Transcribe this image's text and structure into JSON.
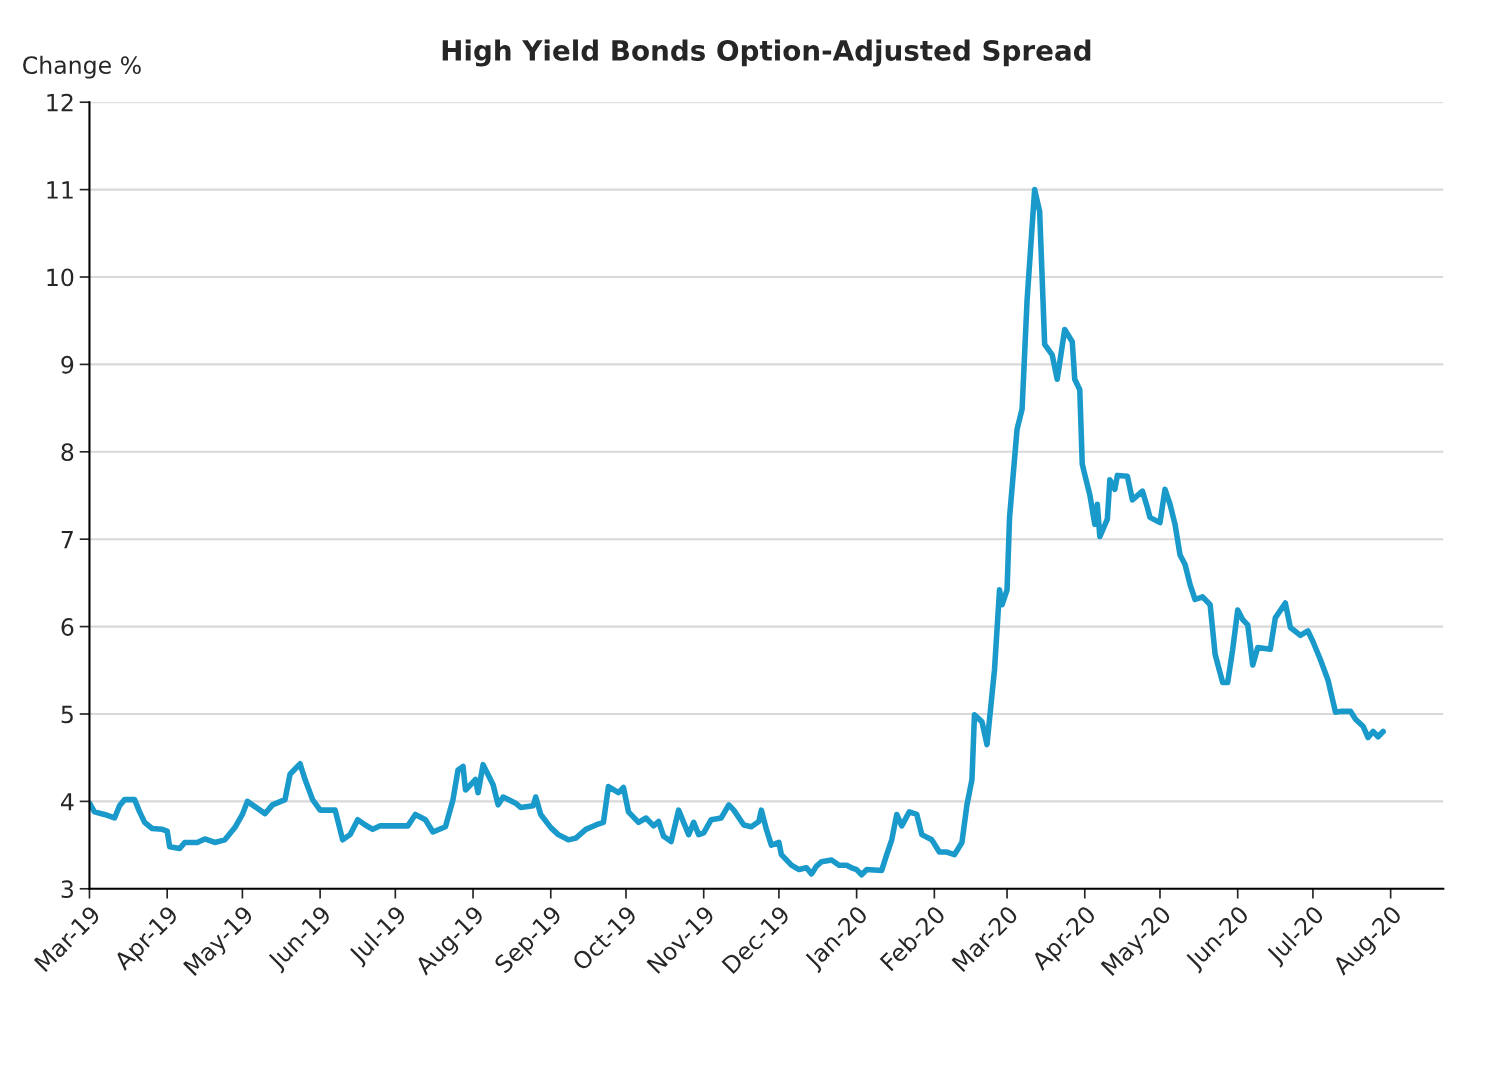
{
  "chart_data": {
    "type": "line",
    "title": "High Yield Bonds Option-Adjusted Spread",
    "ylabel": "Change %",
    "x": [
      "2019-03-01",
      "2019-03-03",
      "2019-03-07",
      "2019-03-11",
      "2019-03-13",
      "2019-03-15",
      "2019-03-19",
      "2019-03-21",
      "2019-03-23",
      "2019-03-26",
      "2019-03-30",
      "2019-04-01",
      "2019-04-02",
      "2019-04-06",
      "2019-04-08",
      "2019-04-13",
      "2019-04-16",
      "2019-04-20",
      "2019-04-24",
      "2019-04-28",
      "2019-05-01",
      "2019-05-03",
      "2019-05-06",
      "2019-05-10",
      "2019-05-13",
      "2019-05-18",
      "2019-05-20",
      "2019-05-24",
      "2019-05-26",
      "2019-05-29",
      "2019-06-01",
      "2019-06-07",
      "2019-06-10",
      "2019-06-13",
      "2019-06-16",
      "2019-06-19",
      "2019-06-22",
      "2019-06-25",
      "2019-07-01",
      "2019-07-06",
      "2019-07-09",
      "2019-07-13",
      "2019-07-16",
      "2019-07-21",
      "2019-07-24",
      "2019-07-26",
      "2019-07-28",
      "2019-07-29",
      "2019-08-02",
      "2019-08-03",
      "2019-08-05",
      "2019-08-09",
      "2019-08-11",
      "2019-08-13",
      "2019-08-18",
      "2019-08-20",
      "2019-08-25",
      "2019-08-26",
      "2019-08-28",
      "2019-09-01",
      "2019-09-04",
      "2019-09-08",
      "2019-09-11",
      "2019-09-15",
      "2019-09-19",
      "2019-09-22",
      "2019-09-24",
      "2019-09-28",
      "2019-09-30",
      "2019-10-02",
      "2019-10-06",
      "2019-10-09",
      "2019-10-12",
      "2019-10-14",
      "2019-10-16",
      "2019-10-19",
      "2019-10-22",
      "2019-10-26",
      "2019-10-28",
      "2019-10-30",
      "2019-11-01",
      "2019-11-04",
      "2019-11-08",
      "2019-11-11",
      "2019-11-13",
      "2019-11-17",
      "2019-11-20",
      "2019-11-23",
      "2019-11-24",
      "2019-11-26",
      "2019-11-28",
      "2019-12-01",
      "2019-12-02",
      "2019-12-06",
      "2019-12-09",
      "2019-12-12",
      "2019-12-14",
      "2019-12-16",
      "2019-12-18",
      "2019-12-22",
      "2019-12-25",
      "2019-12-28",
      "2019-12-30",
      "2020-01-01",
      "2020-01-03",
      "2020-01-05",
      "2020-01-11",
      "2020-01-13",
      "2020-01-15",
      "2020-01-17",
      "2020-01-19",
      "2020-01-22",
      "2020-01-25",
      "2020-01-27",
      "2020-01-31",
      "2020-02-03",
      "2020-02-06",
      "2020-02-09",
      "2020-02-12",
      "2020-02-14",
      "2020-02-16",
      "2020-02-17",
      "2020-02-20",
      "2020-02-22",
      "2020-02-25",
      "2020-02-27",
      "2020-02-28",
      "2020-03-01",
      "2020-03-02",
      "2020-03-05",
      "2020-03-07",
      "2020-03-09",
      "2020-03-12",
      "2020-03-14",
      "2020-03-16",
      "2020-03-19",
      "2020-03-21",
      "2020-03-24",
      "2020-03-27",
      "2020-03-28",
      "2020-03-30",
      "2020-03-31",
      "2020-04-01",
      "2020-04-03",
      "2020-04-05",
      "2020-04-06",
      "2020-04-07",
      "2020-04-10",
      "2020-04-11",
      "2020-04-13",
      "2020-04-14",
      "2020-04-18",
      "2020-04-20",
      "2020-04-24",
      "2020-04-26",
      "2020-04-27",
      "2020-05-01",
      "2020-05-03",
      "2020-05-05",
      "2020-05-07",
      "2020-05-09",
      "2020-05-11",
      "2020-05-13",
      "2020-05-15",
      "2020-05-18",
      "2020-05-21",
      "2020-05-23",
      "2020-05-26",
      "2020-05-28",
      "2020-05-30",
      "2020-06-01",
      "2020-06-03",
      "2020-06-05",
      "2020-06-07",
      "2020-06-09",
      "2020-06-14",
      "2020-06-16",
      "2020-06-20",
      "2020-06-22",
      "2020-06-26",
      "2020-06-29",
      "2020-07-01",
      "2020-07-04",
      "2020-07-07",
      "2020-07-10",
      "2020-07-12",
      "2020-07-16",
      "2020-07-18",
      "2020-07-21",
      "2020-07-23",
      "2020-07-25",
      "2020-07-27",
      "2020-07-29"
    ],
    "series": [
      {
        "color": "#1a9acb",
        "values": [
          3.98,
          3.88,
          3.85,
          3.81,
          3.95,
          4.02,
          4.02,
          3.88,
          3.76,
          3.69,
          3.68,
          3.66,
          3.48,
          3.46,
          3.53,
          3.53,
          3.57,
          3.53,
          3.56,
          3.7,
          3.85,
          4.0,
          3.94,
          3.86,
          3.96,
          4.02,
          4.31,
          4.43,
          4.25,
          4.02,
          3.9,
          3.9,
          3.56,
          3.62,
          3.79,
          3.73,
          3.68,
          3.72,
          3.72,
          3.72,
          3.85,
          3.79,
          3.65,
          3.71,
          4.02,
          4.36,
          4.4,
          4.13,
          4.25,
          4.1,
          4.42,
          4.19,
          3.96,
          4.05,
          3.98,
          3.93,
          3.95,
          4.05,
          3.85,
          3.7,
          3.62,
          3.56,
          3.58,
          3.68,
          3.73,
          3.76,
          4.17,
          4.1,
          4.16,
          3.88,
          3.76,
          3.81,
          3.72,
          3.77,
          3.6,
          3.54,
          3.9,
          3.62,
          3.76,
          3.62,
          3.64,
          3.79,
          3.81,
          3.96,
          3.9,
          3.73,
          3.71,
          3.77,
          3.9,
          3.68,
          3.5,
          3.53,
          3.39,
          3.27,
          3.22,
          3.24,
          3.17,
          3.26,
          3.31,
          3.33,
          3.27,
          3.27,
          3.24,
          3.22,
          3.16,
          3.22,
          3.21,
          3.39,
          3.56,
          3.85,
          3.72,
          3.88,
          3.85,
          3.62,
          3.56,
          3.42,
          3.42,
          3.39,
          3.53,
          3.96,
          4.25,
          4.99,
          4.91,
          4.65,
          5.51,
          6.42,
          6.25,
          6.42,
          7.25,
          8.26,
          8.49,
          9.74,
          11.0,
          10.75,
          9.23,
          9.11,
          8.83,
          9.4,
          9.26,
          8.83,
          8.71,
          7.86,
          7.74,
          7.51,
          7.17,
          7.4,
          7.03,
          7.23,
          7.68,
          7.57,
          7.73,
          7.72,
          7.45,
          7.55,
          7.36,
          7.25,
          7.19,
          7.57,
          7.4,
          7.17,
          6.82,
          6.71,
          6.48,
          6.31,
          6.34,
          6.25,
          5.68,
          5.36,
          5.36,
          5.74,
          6.19,
          6.08,
          6.02,
          5.56,
          5.76,
          5.74,
          6.1,
          6.27,
          5.99,
          5.9,
          5.95,
          5.83,
          5.62,
          5.39,
          5.02,
          5.03,
          5.03,
          4.94,
          4.86,
          4.73,
          4.8,
          4.74,
          4.8
        ]
      }
    ],
    "xlim": [
      "2019-03-01",
      "2020-08-22"
    ],
    "xticks": [
      {
        "value": "2019-03-01",
        "label": "Mar-19"
      },
      {
        "value": "2019-04-01",
        "label": "Apr-19"
      },
      {
        "value": "2019-05-01",
        "label": "May-19"
      },
      {
        "value": "2019-06-01",
        "label": "Jun-19"
      },
      {
        "value": "2019-07-01",
        "label": "Jul-19"
      },
      {
        "value": "2019-08-01",
        "label": "Aug-19"
      },
      {
        "value": "2019-09-01",
        "label": "Sep-19"
      },
      {
        "value": "2019-10-01",
        "label": "Oct-19"
      },
      {
        "value": "2019-11-01",
        "label": "Nov-19"
      },
      {
        "value": "2019-12-01",
        "label": "Dec-19"
      },
      {
        "value": "2020-01-01",
        "label": "Jan-20"
      },
      {
        "value": "2020-02-01",
        "label": "Feb-20"
      },
      {
        "value": "2020-03-01",
        "label": "Mar-20"
      },
      {
        "value": "2020-04-01",
        "label": "Apr-20"
      },
      {
        "value": "2020-05-01",
        "label": "May-20"
      },
      {
        "value": "2020-06-01",
        "label": "Jun-20"
      },
      {
        "value": "2020-07-01",
        "label": "Jul-20"
      },
      {
        "value": "2020-08-01",
        "label": "Aug-20"
      }
    ],
    "ylim": [
      3,
      12
    ],
    "yticks": [
      3,
      4,
      5,
      6,
      7,
      8,
      9,
      10,
      11,
      12
    ],
    "grid": "y",
    "marker": "none",
    "line_style": "solid"
  }
}
